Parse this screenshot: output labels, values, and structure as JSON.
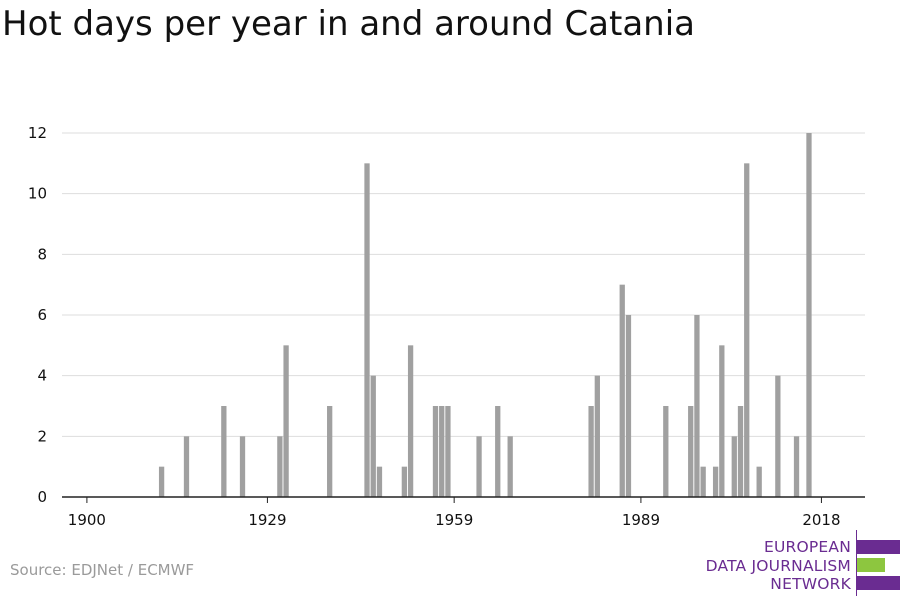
{
  "title": "Hot days per year in and around Catania",
  "source": "Source: EDJNet / ECMWF",
  "logo": {
    "line1": "EUROPEAN",
    "line2": "DATA JOURNALISM",
    "line3": "NETWORK",
    "colors": {
      "purple": "#6a2c91",
      "green": "#8dc63f"
    }
  },
  "colors": {
    "bar": "#a0a0a0",
    "grid": "#dddddd",
    "axis": "#222222",
    "text": "#111111"
  },
  "chart_data": {
    "type": "bar",
    "title": "Hot days per year in and around Catania",
    "xlabel": "",
    "ylabel": "",
    "xlim": [
      1896,
      2025
    ],
    "ylim": [
      0,
      12
    ],
    "x_ticks": [
      1900,
      1929,
      1959,
      1989,
      2018
    ],
    "y_ticks": [
      0,
      2,
      4,
      6,
      8,
      10,
      12
    ],
    "grid": true,
    "points": [
      {
        "x": 1912,
        "y": 1
      },
      {
        "x": 1916,
        "y": 2
      },
      {
        "x": 1922,
        "y": 3
      },
      {
        "x": 1925,
        "y": 2
      },
      {
        "x": 1931,
        "y": 2
      },
      {
        "x": 1932,
        "y": 5
      },
      {
        "x": 1939,
        "y": 3
      },
      {
        "x": 1945,
        "y": 11
      },
      {
        "x": 1946,
        "y": 4
      },
      {
        "x": 1947,
        "y": 1
      },
      {
        "x": 1951,
        "y": 1
      },
      {
        "x": 1952,
        "y": 5
      },
      {
        "x": 1956,
        "y": 3
      },
      {
        "x": 1957,
        "y": 3
      },
      {
        "x": 1958,
        "y": 3
      },
      {
        "x": 1963,
        "y": 2
      },
      {
        "x": 1966,
        "y": 3
      },
      {
        "x": 1968,
        "y": 2
      },
      {
        "x": 1981,
        "y": 3
      },
      {
        "x": 1982,
        "y": 4
      },
      {
        "x": 1986,
        "y": 7
      },
      {
        "x": 1987,
        "y": 6
      },
      {
        "x": 1993,
        "y": 3
      },
      {
        "x": 1997,
        "y": 3
      },
      {
        "x": 1998,
        "y": 6
      },
      {
        "x": 1999,
        "y": 1
      },
      {
        "x": 2001,
        "y": 1
      },
      {
        "x": 2002,
        "y": 5
      },
      {
        "x": 2004,
        "y": 2
      },
      {
        "x": 2005,
        "y": 3
      },
      {
        "x": 2006,
        "y": 11
      },
      {
        "x": 2008,
        "y": 1
      },
      {
        "x": 2011,
        "y": 4
      },
      {
        "x": 2014,
        "y": 2
      },
      {
        "x": 2016,
        "y": 12
      }
    ]
  }
}
